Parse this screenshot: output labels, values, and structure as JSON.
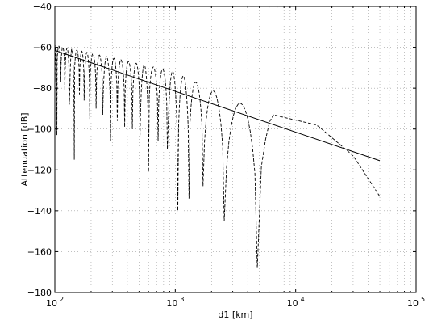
{
  "chart_data": {
    "type": "line",
    "xlabel": "d1 [km]",
    "ylabel": "Attenuation [dB]",
    "x_scale": "log",
    "xlim": [
      100,
      100000
    ],
    "ylim": [
      -180,
      -40
    ],
    "grid": true,
    "x_ticks": [
      {
        "value": 100,
        "base": "10",
        "exp": "2"
      },
      {
        "value": 1000,
        "base": "10",
        "exp": "3"
      },
      {
        "value": 10000,
        "base": "10",
        "exp": "4"
      },
      {
        "value": 100000,
        "base": "10",
        "exp": "5"
      }
    ],
    "y_ticks": [
      -40,
      -60,
      -80,
      -100,
      -120,
      -140,
      -160,
      -180
    ],
    "series": [
      {
        "style": "solid",
        "color": "#000000",
        "x": [
          100,
          50000
        ],
        "y": [
          -61.5,
          -115.5
        ]
      },
      {
        "style": "dashed",
        "color": "#000000",
        "envelope": [
          [
            100,
            -59
          ],
          [
            1000,
            -72
          ],
          [
            3000,
            -86
          ],
          [
            7000,
            -93.5
          ],
          [
            15000,
            -98
          ],
          [
            30000,
            -113
          ],
          [
            50000,
            -133
          ]
        ],
        "baseline": [
          [
            100,
            -61.5
          ],
          [
            50000,
            -115.5
          ]
        ],
        "nulls": [
          {
            "x": 4800,
            "y": -168
          },
          {
            "x": 2550,
            "y": -145
          },
          {
            "x": 1700,
            "y": -128
          },
          {
            "x": 1300,
            "y": -134
          },
          {
            "x": 1050,
            "y": -140
          },
          {
            "x": 860,
            "y": -110
          },
          {
            "x": 720,
            "y": -106
          },
          {
            "x": 600,
            "y": -121
          },
          {
            "x": 510,
            "y": -103
          },
          {
            "x": 440,
            "y": -100
          },
          {
            "x": 380,
            "y": -99
          },
          {
            "x": 330,
            "y": -96
          },
          {
            "x": 290,
            "y": -106
          },
          {
            "x": 250,
            "y": -93
          },
          {
            "x": 220,
            "y": -90
          },
          {
            "x": 195,
            "y": -95
          },
          {
            "x": 175,
            "y": -86
          },
          {
            "x": 160,
            "y": -83
          },
          {
            "x": 145,
            "y": -115
          },
          {
            "x": 132,
            "y": -88
          },
          {
            "x": 121,
            "y": -81
          },
          {
            "x": 112,
            "y": -77
          },
          {
            "x": 104,
            "y": -103
          }
        ]
      }
    ]
  }
}
